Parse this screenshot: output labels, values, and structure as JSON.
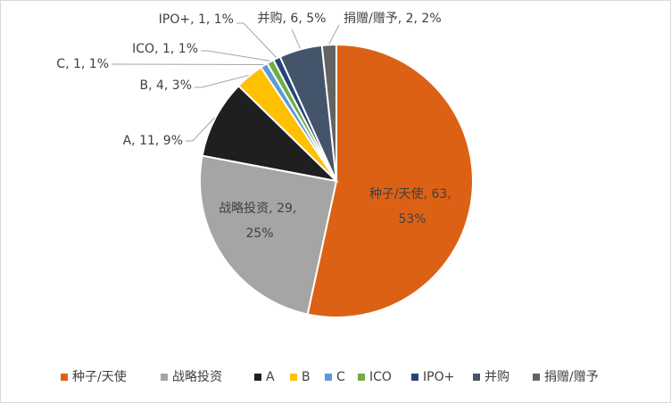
{
  "chart_data": {
    "type": "pie",
    "categories": [
      "种子/天使",
      "战略投资",
      "A",
      "B",
      "C",
      "ICO",
      "IPO+",
      "并购",
      "捐赠/赠予"
    ],
    "values": [
      63,
      29,
      11,
      4,
      1,
      1,
      1,
      6,
      2
    ],
    "value_labels": [
      "种子/天使, 63, 53%",
      "战略投资, 29, 25%",
      "A, 11, 9%",
      "B, 4, 3%",
      "C, 1, 1%",
      "ICO, 1, 1%",
      "IPO+, 1, 1%",
      "并购, 6, 5%",
      "捐赠/赠予, 2, 2%"
    ],
    "colors": [
      "#DD6114",
      "#A5A5A5",
      "#1F1F1F",
      "#FFC000",
      "#5B9BD5",
      "#70AD47",
      "#264478",
      "#44546A",
      "#636363"
    ],
    "legend": "bottom"
  }
}
